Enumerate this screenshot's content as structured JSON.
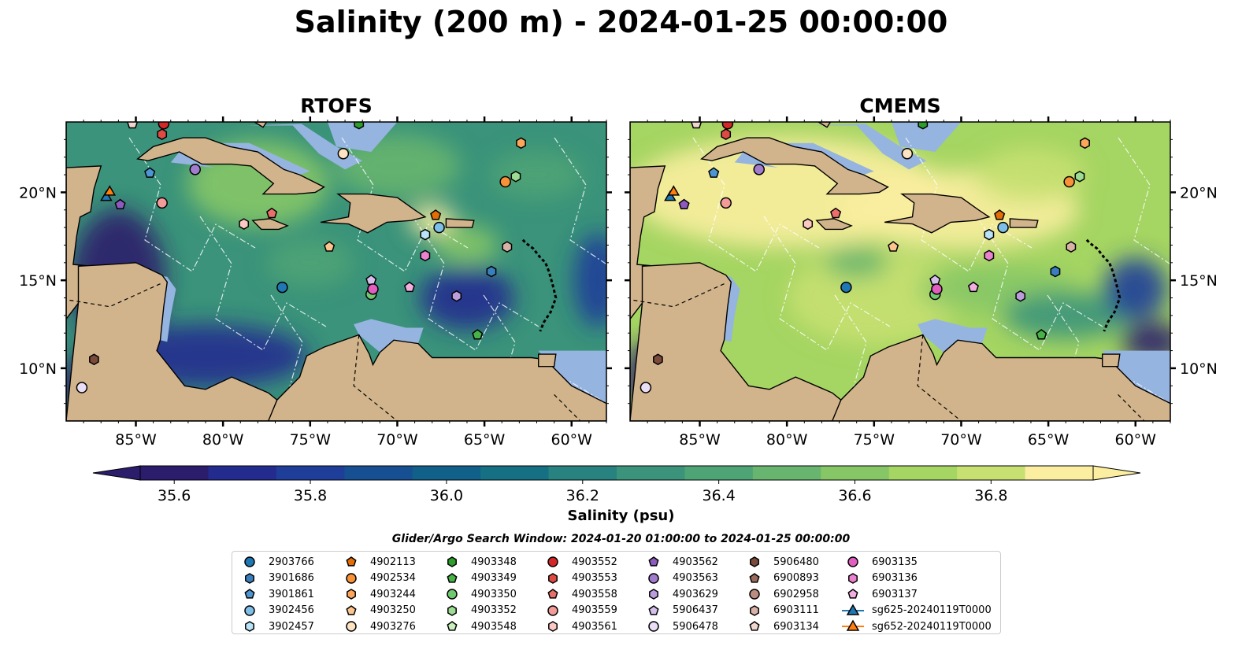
{
  "title": "Salinity (200 m) - 2024-01-25 00:00:00",
  "panels": [
    {
      "title": "RTOFS",
      "lat_labels_side": "left"
    },
    {
      "title": "CMEMS",
      "lat_labels_side": "right"
    }
  ],
  "map": {
    "lon_range": [
      -89,
      -58
    ],
    "lat_range": [
      7,
      24
    ],
    "lon_ticks": [
      {
        "lon": -85,
        "label": "85°W"
      },
      {
        "lon": -80,
        "label": "80°W"
      },
      {
        "lon": -75,
        "label": "75°W"
      },
      {
        "lon": -70,
        "label": "70°W"
      },
      {
        "lon": -65,
        "label": "65°W"
      },
      {
        "lon": -60,
        "label": "60°W"
      }
    ],
    "lat_ticks": [
      {
        "lat": 10,
        "label": "10°N"
      },
      {
        "lat": 15,
        "label": "15°N"
      },
      {
        "lat": 20,
        "label": "20°N"
      }
    ],
    "land_color": "#d2b48c",
    "shelf_color": "#95b4e0"
  },
  "colorbar": {
    "label": "Salinity (psu)",
    "min": 35.55,
    "max": 36.95,
    "ticks": [
      {
        "value": 35.6,
        "label": "35.6"
      },
      {
        "value": 35.8,
        "label": "35.8"
      },
      {
        "value": 36.0,
        "label": "36.0"
      },
      {
        "value": 36.2,
        "label": "36.2"
      },
      {
        "value": 36.4,
        "label": "36.4"
      },
      {
        "value": 36.6,
        "label": "36.6"
      },
      {
        "value": 36.8,
        "label": "36.8"
      }
    ],
    "colors": [
      "#2b1d6b",
      "#232b8f",
      "#1f3e99",
      "#175092",
      "#10608a",
      "#157083",
      "#28827f",
      "#3a937a",
      "#4fa476",
      "#68b56f",
      "#86c666",
      "#a5d562",
      "#c7e071",
      "#fbeea0"
    ]
  },
  "search_window": "Glider/Argo Search Window: 2024-01-20 01:00:00 to 2024-01-25 00:00:00",
  "legend": [
    {
      "label": "2903766",
      "marker": "circle",
      "color": "#1f77b4"
    },
    {
      "label": "3901686",
      "marker": "hexagon",
      "color": "#3a7fbd"
    },
    {
      "label": "3901861",
      "marker": "pentagon",
      "color": "#4e95d1"
    },
    {
      "label": "3902456",
      "marker": "circle",
      "color": "#7ebfe8"
    },
    {
      "label": "3902457",
      "marker": "hexagon",
      "color": "#b9e3f6"
    },
    {
      "label": "4902113",
      "marker": "pentagon",
      "color": "#e66d05"
    },
    {
      "label": "4902534",
      "marker": "circle",
      "color": "#f99237"
    },
    {
      "label": "4903244",
      "marker": "hexagon",
      "color": "#fba65a"
    },
    {
      "label": "4903250",
      "marker": "pentagon",
      "color": "#fcc58d"
    },
    {
      "label": "4903276",
      "marker": "circle",
      "color": "#fde3c2"
    },
    {
      "label": "4903348",
      "marker": "hexagon",
      "color": "#2b9e2b"
    },
    {
      "label": "4903349",
      "marker": "pentagon",
      "color": "#47b347"
    },
    {
      "label": "4903350",
      "marker": "circle",
      "color": "#70c970"
    },
    {
      "label": "4903352",
      "marker": "hexagon",
      "color": "#9ddc93"
    },
    {
      "label": "4903548",
      "marker": "pentagon",
      "color": "#c9efbd"
    },
    {
      "label": "4903552",
      "marker": "circle",
      "color": "#d62728"
    },
    {
      "label": "4903553",
      "marker": "hexagon",
      "color": "#df4a45"
    },
    {
      "label": "4903558",
      "marker": "pentagon",
      "color": "#ea6f6b"
    },
    {
      "label": "4903559",
      "marker": "circle",
      "color": "#f39b98"
    },
    {
      "label": "4903561",
      "marker": "hexagon",
      "color": "#fbc8c4"
    },
    {
      "label": "4903562",
      "marker": "pentagon",
      "color": "#8c5bbd"
    },
    {
      "label": "4903563",
      "marker": "circle",
      "color": "#a27ccd"
    },
    {
      "label": "4903629",
      "marker": "hexagon",
      "color": "#bb9ddc"
    },
    {
      "label": "5906437",
      "marker": "pentagon",
      "color": "#d4c0ea"
    },
    {
      "label": "5906478",
      "marker": "circle",
      "color": "#e9def5"
    },
    {
      "label": "5906480",
      "marker": "hexagon",
      "color": "#7b4a3c"
    },
    {
      "label": "6900893",
      "marker": "pentagon",
      "color": "#9a6a5c"
    },
    {
      "label": "6902958",
      "marker": "circle",
      "color": "#bc8c80"
    },
    {
      "label": "6903111",
      "marker": "hexagon",
      "color": "#d8b2a6"
    },
    {
      "label": "6903134",
      "marker": "pentagon",
      "color": "#f0d6cc"
    },
    {
      "label": "6903135",
      "marker": "circle",
      "color": "#e15ec0"
    },
    {
      "label": "6903136",
      "marker": "hexagon",
      "color": "#ea82d0"
    },
    {
      "label": "6903137",
      "marker": "pentagon",
      "color": "#f3aee0"
    },
    {
      "label": "sg625-20240119T0000",
      "marker": "triangle-line",
      "color": "#1f77b4"
    },
    {
      "label": "sg652-20240119T0000",
      "marker": "triangle-line",
      "color": "#ff7f0e"
    }
  ],
  "floats": [
    {
      "lon": -76.6,
      "lat": 14.6,
      "marker": "circle",
      "color": "#1f77b4"
    },
    {
      "lon": -64.6,
      "lat": 15.5,
      "marker": "hexagon",
      "color": "#3a7fbd"
    },
    {
      "lon": -84.2,
      "lat": 21.1,
      "marker": "pentagon",
      "color": "#4e95d1"
    },
    {
      "lon": -67.6,
      "lat": 18.0,
      "marker": "circle",
      "color": "#7ebfe8"
    },
    {
      "lon": -68.4,
      "lat": 17.6,
      "marker": "hexagon",
      "color": "#b9e3f6"
    },
    {
      "lon": -67.8,
      "lat": 18.7,
      "marker": "pentagon",
      "color": "#e66d05"
    },
    {
      "lon": -63.8,
      "lat": 20.6,
      "marker": "circle",
      "color": "#f99237"
    },
    {
      "lon": -62.9,
      "lat": 22.8,
      "marker": "hexagon",
      "color": "#fba65a"
    },
    {
      "lon": -73.9,
      "lat": 16.9,
      "marker": "pentagon",
      "color": "#fcc58d"
    },
    {
      "lon": -73.1,
      "lat": 22.2,
      "marker": "circle",
      "color": "#fde3c2"
    },
    {
      "lon": -72.2,
      "lat": 23.9,
      "marker": "hexagon",
      "color": "#2b9e2b"
    },
    {
      "lon": -65.4,
      "lat": 11.9,
      "marker": "pentagon",
      "color": "#47b347"
    },
    {
      "lon": -71.5,
      "lat": 14.2,
      "marker": "circle",
      "color": "#70c970"
    },
    {
      "lon": -63.2,
      "lat": 20.9,
      "marker": "hexagon",
      "color": "#9ddc93"
    },
    {
      "lon": -83.4,
      "lat": 23.9,
      "marker": "circle",
      "color": "#d62728"
    },
    {
      "lon": -83.5,
      "lat": 23.3,
      "marker": "hexagon",
      "color": "#df4a45"
    },
    {
      "lon": -77.2,
      "lat": 18.8,
      "marker": "pentagon",
      "color": "#ea6f6b"
    },
    {
      "lon": -83.5,
      "lat": 19.4,
      "marker": "circle",
      "color": "#f39b98"
    },
    {
      "lon": -78.8,
      "lat": 18.2,
      "marker": "hexagon",
      "color": "#fbc8c4"
    },
    {
      "lon": -85.9,
      "lat": 19.3,
      "marker": "pentagon",
      "color": "#8c5bbd"
    },
    {
      "lon": -81.6,
      "lat": 21.3,
      "marker": "circle",
      "color": "#a27ccd"
    },
    {
      "lon": -66.6,
      "lat": 14.1,
      "marker": "hexagon",
      "color": "#bb9ddc"
    },
    {
      "lon": -71.5,
      "lat": 15.0,
      "marker": "pentagon",
      "color": "#d4c0ea"
    },
    {
      "lon": -88.1,
      "lat": 8.9,
      "marker": "circle",
      "color": "#e9def5"
    },
    {
      "lon": -87.4,
      "lat": 10.5,
      "marker": "hexagon",
      "color": "#7b4a3c"
    },
    {
      "lon": -63.7,
      "lat": 16.9,
      "marker": "hexagon",
      "color": "#d8b2a6"
    },
    {
      "lon": -85.2,
      "lat": 23.9,
      "marker": "pentagon",
      "color": "#f0d6cc"
    },
    {
      "lon": -71.4,
      "lat": 14.5,
      "marker": "circle",
      "color": "#e15ec0"
    },
    {
      "lon": -68.4,
      "lat": 16.4,
      "marker": "hexagon",
      "color": "#ea82d0"
    },
    {
      "lon": -69.3,
      "lat": 14.6,
      "marker": "pentagon",
      "color": "#f3aee0"
    },
    {
      "lon": -86.7,
      "lat": 19.8,
      "marker": "triangle",
      "color": "#1f77b4"
    },
    {
      "lon": -86.5,
      "lat": 20.1,
      "marker": "triangle",
      "color": "#ff7f0e"
    }
  ]
}
